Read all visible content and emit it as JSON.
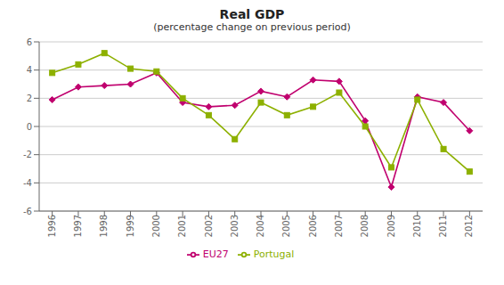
{
  "chart_data": {
    "type": "line",
    "title": "Real GDP",
    "subtitle": "(percentage change on previous period)",
    "x": [
      1996,
      1997,
      1998,
      1999,
      2000,
      2001,
      2002,
      2003,
      2004,
      2005,
      2006,
      2007,
      2008,
      2009,
      2010,
      2011,
      2012
    ],
    "series": [
      {
        "name": "EU27",
        "color": "#c0006e",
        "marker": "diamond",
        "values": [
          1.9,
          2.8,
          2.9,
          3.0,
          3.8,
          1.7,
          1.4,
          1.5,
          2.5,
          2.1,
          3.3,
          3.2,
          0.4,
          -4.3,
          2.1,
          1.7,
          -0.3
        ]
      },
      {
        "name": "Portugal",
        "color": "#8db000",
        "marker": "square",
        "values": [
          3.8,
          4.4,
          5.2,
          4.1,
          3.9,
          2.0,
          0.8,
          -0.9,
          1.7,
          0.8,
          1.4,
          2.4,
          0.0,
          -2.9,
          1.9,
          -1.6,
          -3.2
        ]
      }
    ],
    "xlim": [
      1995.5,
      2012.5
    ],
    "xticks": [
      1996,
      1997,
      1998,
      1999,
      2000,
      2001,
      2002,
      2003,
      2004,
      2005,
      2006,
      2007,
      2008,
      2009,
      2010,
      2011,
      2012
    ],
    "ylim": [
      -6,
      6
    ],
    "yticks": [
      -6,
      -4,
      -2,
      0,
      2,
      4,
      6
    ],
    "grid": true,
    "legend": "bottom"
  }
}
